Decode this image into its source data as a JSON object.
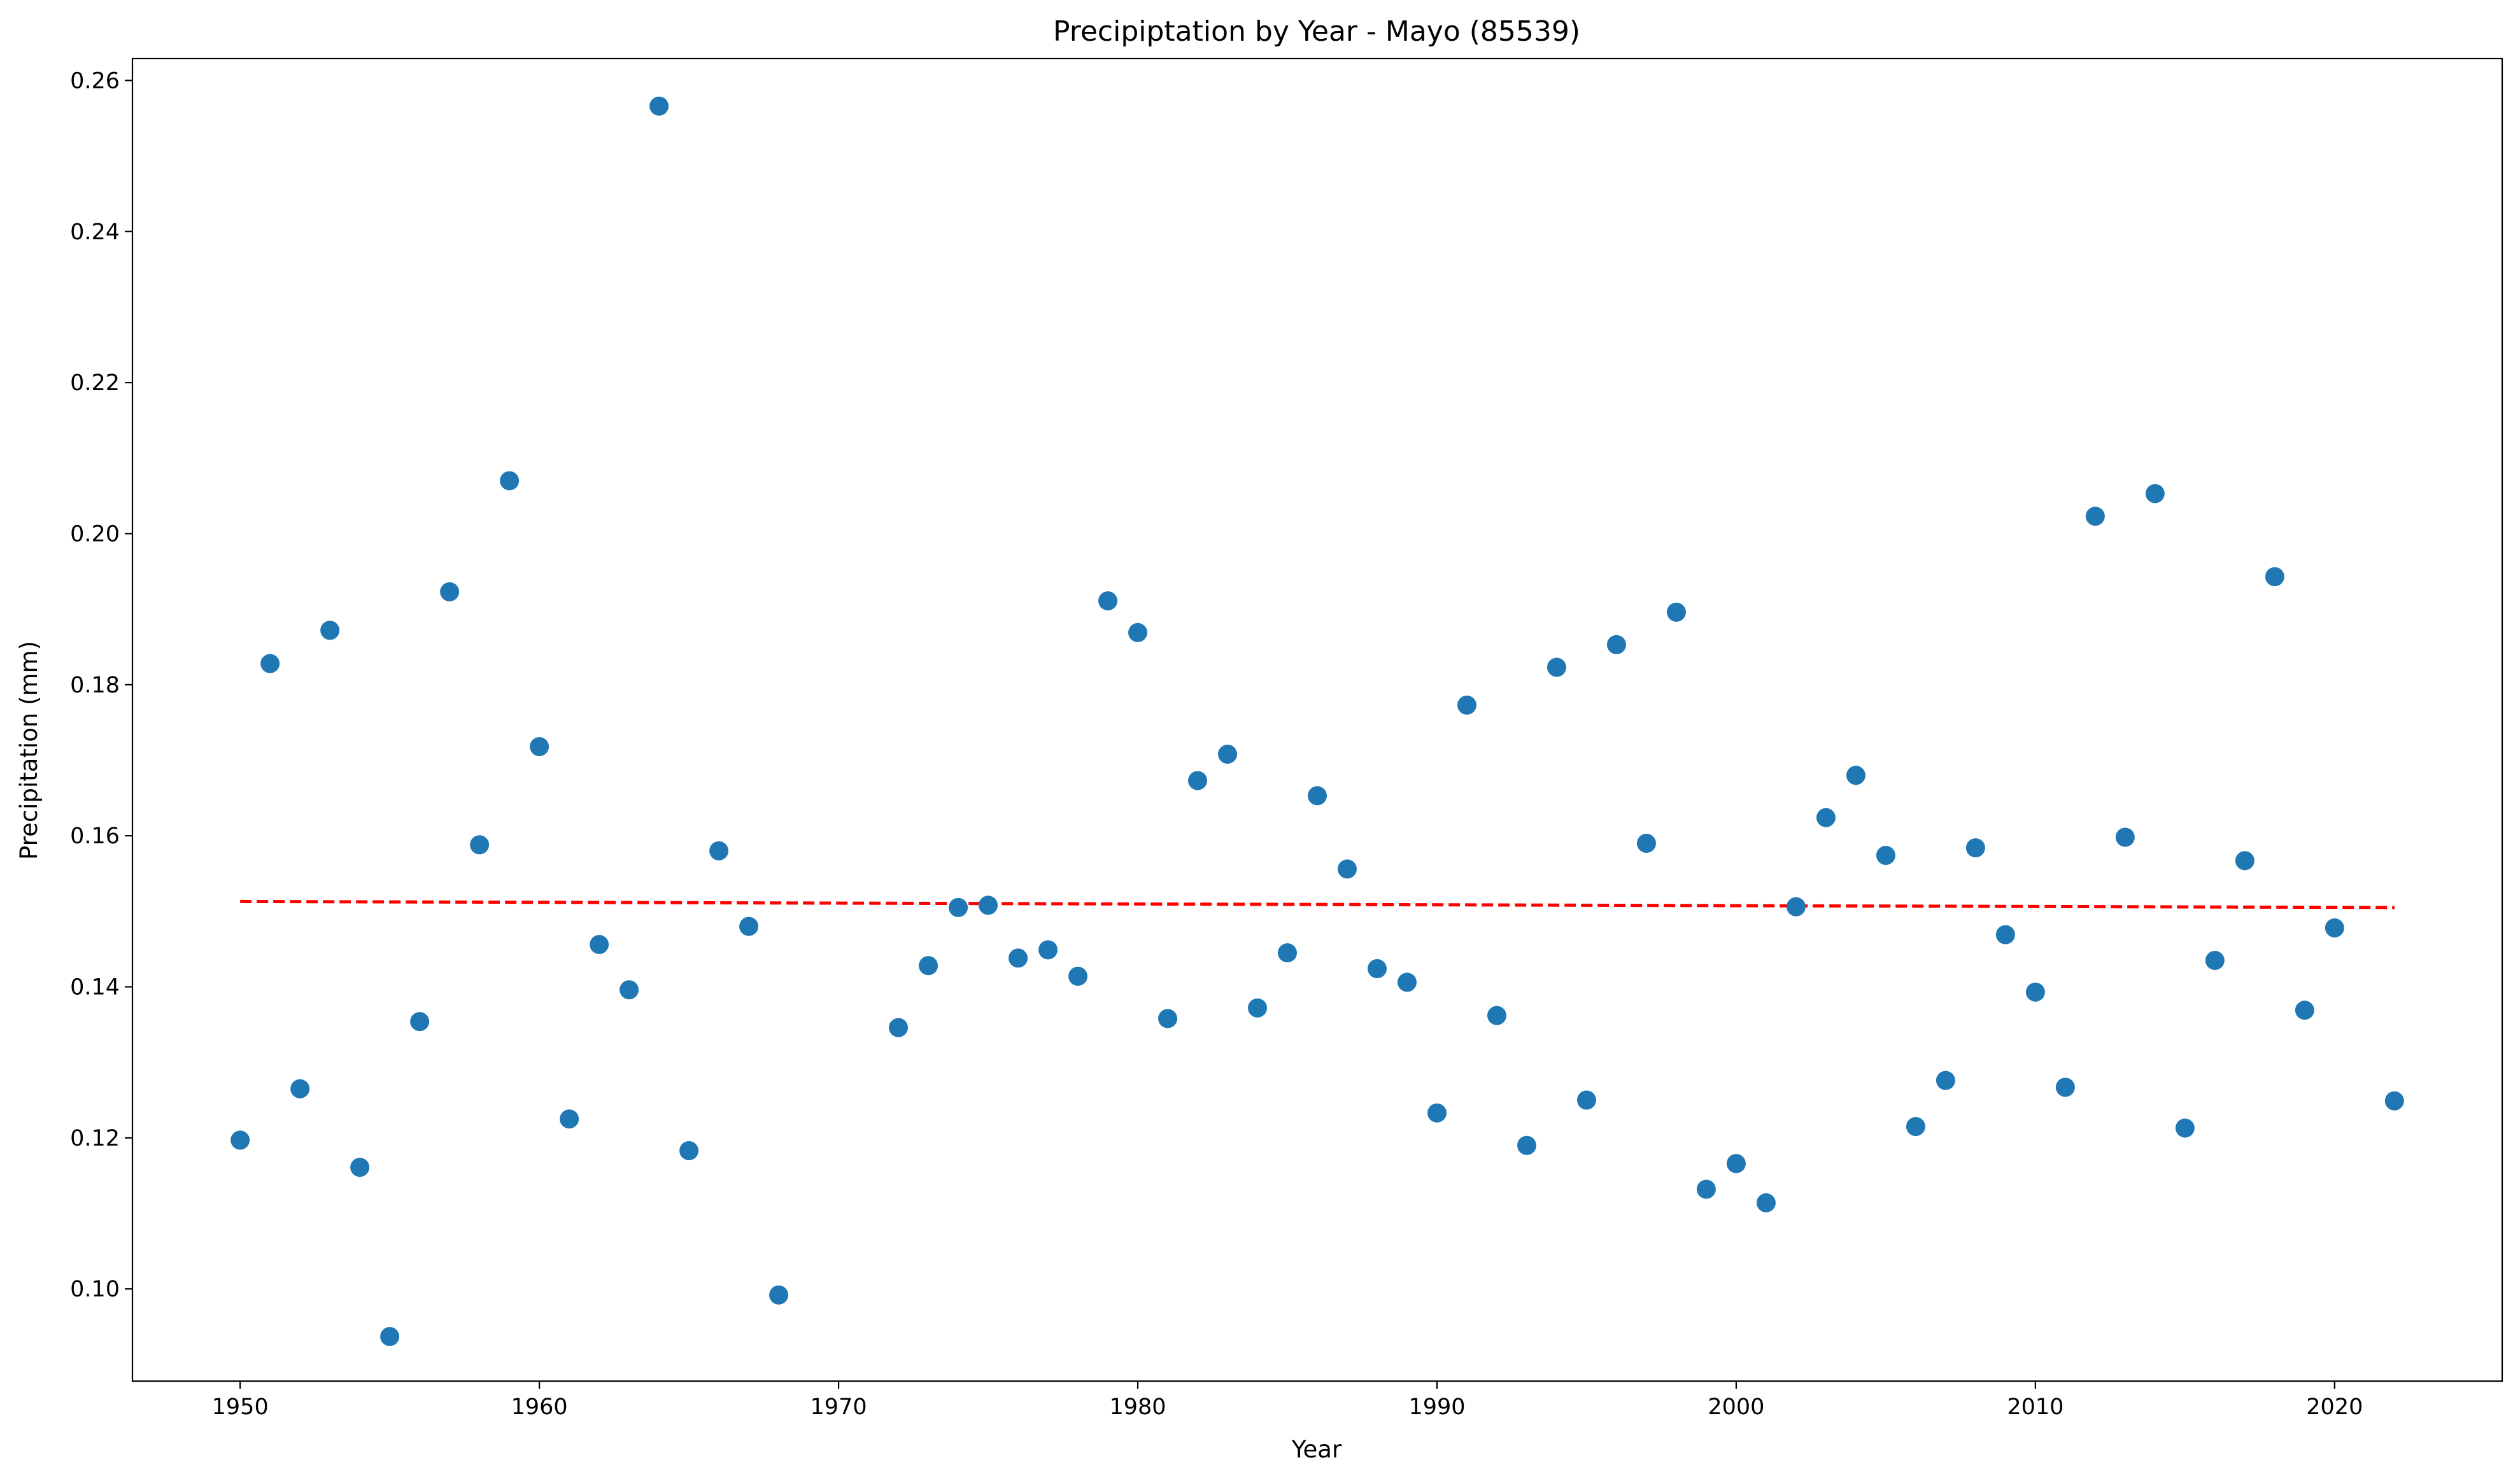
{
  "chart_data": {
    "type": "scatter",
    "title": "Precipiptation by Year - Mayo (85539)",
    "xlabel": "Year",
    "ylabel": "Precipitation (mm)",
    "xlim": [
      1946.4,
      2025.6
    ],
    "ylim": [
      0.0878,
      0.2629
    ],
    "xticks": [
      1950,
      1960,
      1970,
      1980,
      1990,
      2000,
      2010,
      2020
    ],
    "yticks": [
      0.1,
      0.12,
      0.14,
      0.16,
      0.18,
      0.2,
      0.22,
      0.24,
      0.26
    ],
    "grid": false,
    "point_color": "#1f77b4",
    "trend_color": "#ff0000",
    "points": [
      [
        1950,
        0.1197
      ],
      [
        1951,
        0.1828
      ],
      [
        1952,
        0.1265
      ],
      [
        1953,
        0.1872
      ],
      [
        1954,
        0.1161
      ],
      [
        1955,
        0.0937
      ],
      [
        1956,
        0.1354
      ],
      [
        1957,
        0.1923
      ],
      [
        1958,
        0.1588
      ],
      [
        1959,
        0.207
      ],
      [
        1960,
        0.1718
      ],
      [
        1961,
        0.1225
      ],
      [
        1962,
        0.1456
      ],
      [
        1963,
        0.1396
      ],
      [
        1964,
        0.2566
      ],
      [
        1965,
        0.1183
      ],
      [
        1966,
        0.158
      ],
      [
        1967,
        0.148
      ],
      [
        1968,
        0.0992
      ],
      [
        1972,
        0.1346
      ],
      [
        1973,
        0.1428
      ],
      [
        1974,
        0.1505
      ],
      [
        1975,
        0.1508
      ],
      [
        1976,
        0.1438
      ],
      [
        1977,
        0.1449
      ],
      [
        1978,
        0.1414
      ],
      [
        1979,
        0.1911
      ],
      [
        1980,
        0.1869
      ],
      [
        1981,
        0.1358
      ],
      [
        1982,
        0.1673
      ],
      [
        1983,
        0.1708
      ],
      [
        1984,
        0.1372
      ],
      [
        1985,
        0.1445
      ],
      [
        1986,
        0.1653
      ],
      [
        1987,
        0.1556
      ],
      [
        1988,
        0.1424
      ],
      [
        1989,
        0.1406
      ],
      [
        1990,
        0.1233
      ],
      [
        1991,
        0.1773
      ],
      [
        1992,
        0.1362
      ],
      [
        1993,
        0.119
      ],
      [
        1994,
        0.1823
      ],
      [
        1995,
        0.125
      ],
      [
        1996,
        0.1853
      ],
      [
        1997,
        0.159
      ],
      [
        1998,
        0.1896
      ],
      [
        1999,
        0.1132
      ],
      [
        2000,
        0.1166
      ],
      [
        2001,
        0.1114
      ],
      [
        2002,
        0.1506
      ],
      [
        2003,
        0.1624
      ],
      [
        2004,
        0.168
      ],
      [
        2005,
        0.1574
      ],
      [
        2006,
        0.1215
      ],
      [
        2007,
        0.1276
      ],
      [
        2008,
        0.1584
      ],
      [
        2009,
        0.1469
      ],
      [
        2010,
        0.1393
      ],
      [
        2011,
        0.1267
      ],
      [
        2012,
        0.2023
      ],
      [
        2013,
        0.1598
      ],
      [
        2014,
        0.2053
      ],
      [
        2015,
        0.1213
      ],
      [
        2016,
        0.1435
      ],
      [
        2017,
        0.1567
      ],
      [
        2018,
        0.1943
      ],
      [
        2019,
        0.1369
      ],
      [
        2020,
        0.1478
      ],
      [
        2022,
        0.1249
      ]
    ],
    "trend_line": {
      "style": "dashed",
      "x": [
        1950,
        2022
      ],
      "y": [
        0.1513,
        0.1505
      ]
    }
  }
}
